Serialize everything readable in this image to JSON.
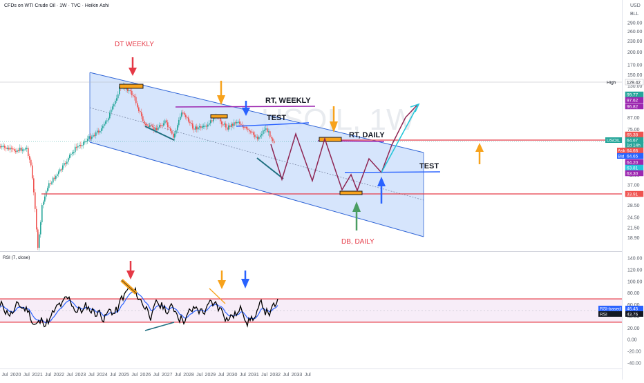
{
  "header": {
    "title": "CFDs on WTI Crude Oil · 1W · TVC · Heikin Ashi",
    "currency": "USD",
    "unit": "BLL"
  },
  "watermark": "USOIL, 1W",
  "annotations": {
    "dt_weekly": "DT WEEKLY",
    "rt_weekly": "RT, WEEKLY",
    "test_upper": "TEST",
    "rt_daily": "RT, DAILY",
    "test_lower": "TEST",
    "db_daily": "DB, DAILY"
  },
  "rsi_panel": {
    "title": "RSI (7, close)"
  },
  "colors": {
    "channel_fill": "#cfe0fb",
    "channel_line": "#2f64d6",
    "red_line": "#e53946",
    "purple": "#9c27b0",
    "orange": "#f7a21b",
    "blue_arrow": "#2962ff",
    "green_arrow": "#4a9d62",
    "teal": "#26c6da",
    "projection": "#8e2452",
    "candle_up": "#26a69a",
    "candle_down": "#ef5350"
  },
  "chart_data": [
    {
      "type": "line",
      "name": "price",
      "scale": "log",
      "x_ticks": [
        "Jul",
        "2020",
        "Jul",
        "2021",
        "Jul",
        "2022",
        "Jul",
        "2023",
        "Jul",
        "2024",
        "Jul",
        "2025",
        "Jul",
        "2026",
        "Jul",
        "2027",
        "Jul",
        "2028",
        "Jul",
        "2029",
        "Jul",
        "2030",
        "Jul",
        "2031",
        "Jul",
        "2032",
        "Jul",
        "2033",
        "Jul"
      ],
      "y_ticks": [
        290,
        260,
        230,
        200,
        170,
        150,
        130,
        115,
        100,
        87,
        75,
        65,
        56,
        48.5,
        42,
        37,
        32.5,
        28.5,
        24.5,
        21.5,
        18.9
      ],
      "ylim": [
        16.5,
        320
      ],
      "hlines": [
        {
          "label": "High",
          "value": 129.42
        }
      ],
      "price_tags": [
        {
          "value": "129.42",
          "color": "#ffffff",
          "text_color": "#131722"
        },
        {
          "value": "99.77",
          "color": "#26a69a"
        },
        {
          "value": "97.62",
          "color": "#9c27b0"
        },
        {
          "value": "96.82",
          "color": "#9c27b0"
        },
        {
          "value": "65.38",
          "color": "#ef5350"
        },
        {
          "value": "64.67",
          "color": "#26a69a"
        },
        {
          "value": "1d 14h",
          "color": "#26a69a"
        },
        {
          "value": "64.66",
          "color": "#ef5350",
          "prefix": "Ask"
        },
        {
          "value": "64.65",
          "color": "#2962ff",
          "prefix": "Bid"
        },
        {
          "value": "64.20",
          "color": "#9c27b0"
        },
        {
          "value": "63.81",
          "color": "#26c6da"
        },
        {
          "value": "63.30",
          "color": "#9c27b0"
        },
        {
          "value": "33.91",
          "color": "#ef5350"
        }
      ],
      "symbol_tag": "USOIL",
      "current_price": 64.67,
      "support_level": 33.91,
      "resistance_level": 65.38
    },
    {
      "type": "line",
      "name": "RSI",
      "y_ticks": [
        140,
        120,
        100,
        80,
        60,
        40,
        20,
        0,
        -20,
        -40
      ],
      "ylim": [
        -45,
        145
      ],
      "band_upper": 70,
      "band_lower": 30,
      "legend": [
        {
          "name": "RSI-based MA",
          "value": "46.45",
          "color": "#2962ff"
        },
        {
          "name": "RSI",
          "value": "43.76",
          "color": "#131722"
        }
      ]
    }
  ]
}
